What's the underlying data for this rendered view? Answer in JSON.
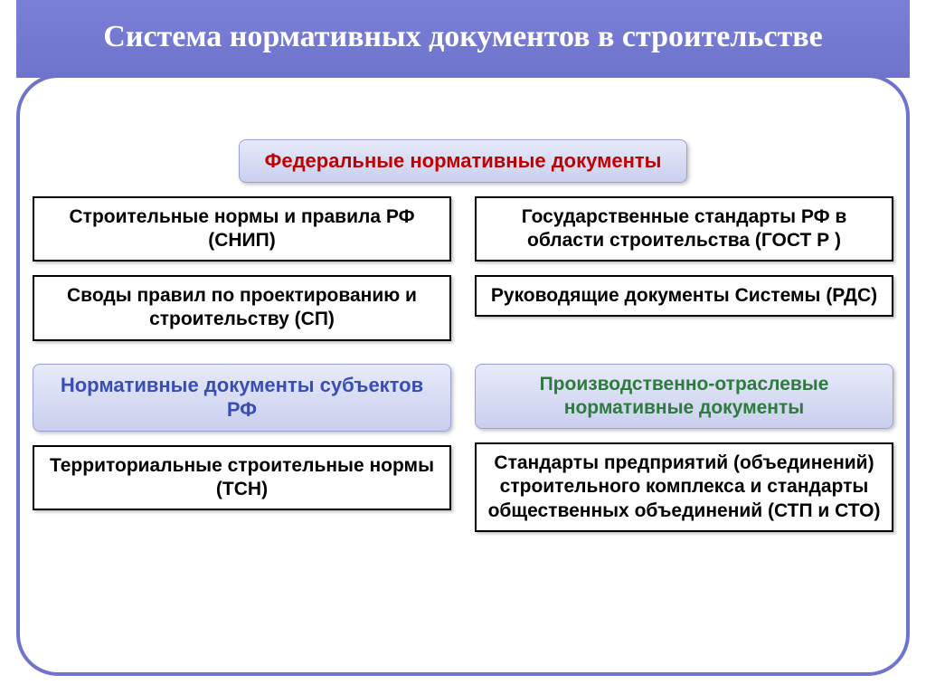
{
  "colors": {
    "title_bg": "#6e74cd",
    "title_text": "#ffffff",
    "frame_border": "#6e74cd",
    "header_bg_top": "#e7eaf9",
    "header_bg_bot": "#c9cfee",
    "header_border": "#9aa1d8",
    "header_red": "#c00000",
    "header_blue": "#3a4db3",
    "header_green": "#2f7a3e",
    "doc_border": "#000000",
    "doc_text": "#000000",
    "page_bg": "#ffffff"
  },
  "typography": {
    "title_family": "Times New Roman",
    "title_size_pt": 34,
    "header_size_pt": 22,
    "doc_size_pt": 21,
    "weight": "bold"
  },
  "title": "Система нормативных документов в строительстве",
  "federal": {
    "header": "Федеральные нормативные документы",
    "left": [
      "Строительные нормы и правила РФ (СНИП)",
      "Своды правил по проектированию и строительству (СП)"
    ],
    "right": [
      "Государственные стандарты РФ в области строительства (ГОСТ Р )",
      "Руководящие документы Системы (РДС)"
    ]
  },
  "subjects": {
    "header": "Нормативные документы субъектов РФ",
    "items": [
      "Территориальные строительные нормы  (ТСН)"
    ]
  },
  "industry": {
    "header": "Производственно-отраслевые нормативные документы",
    "items": [
      "Стандарты предприятий (объединений) строительного комплекса и стандарты общественных объединений (СТП и СТО)"
    ]
  }
}
